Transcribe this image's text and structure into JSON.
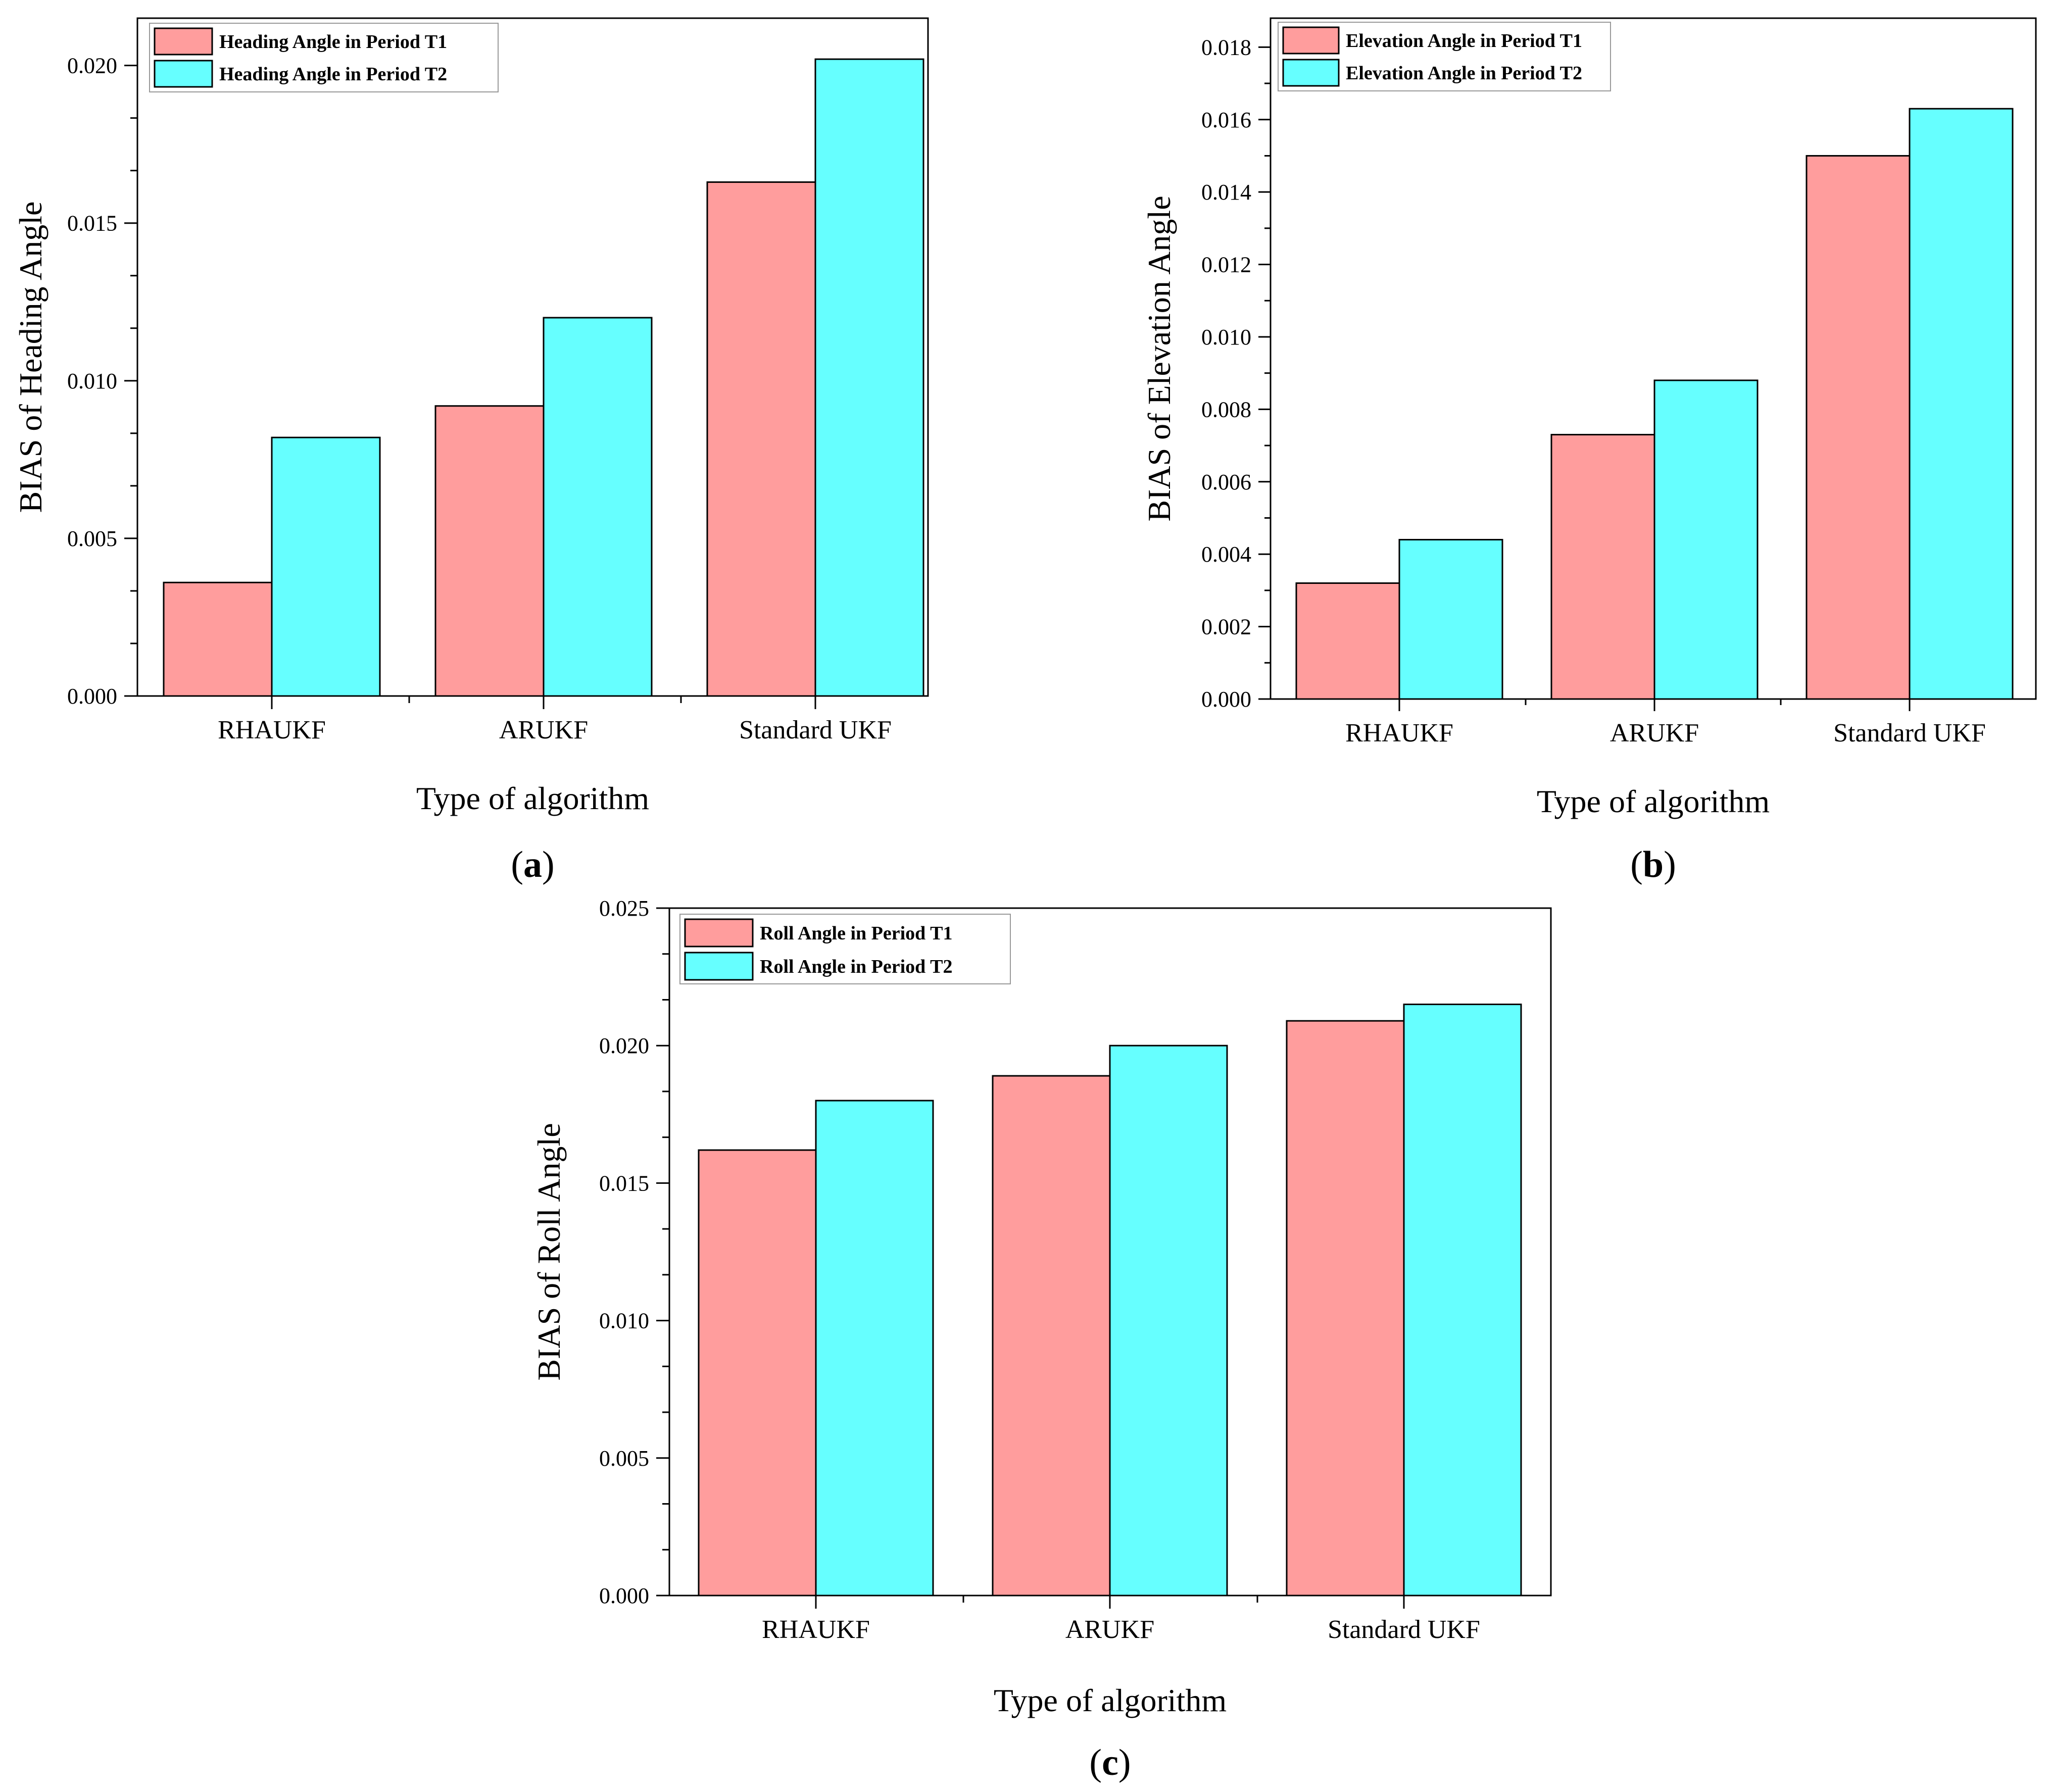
{
  "chart_data": [
    {
      "type": "bar",
      "panel": "a",
      "panel_label": [
        "(",
        "a",
        ")"
      ],
      "categories": [
        "RHAUKF",
        "ARUKF",
        "Standard UKF"
      ],
      "series": [
        {
          "name": "Heading Angle in Period T1",
          "color": "#FF9D9D",
          "values": [
            0.0036,
            0.0092,
            0.0163
          ]
        },
        {
          "name": "Heading Angle in Period T2",
          "color": "#66FFFF",
          "values": [
            0.0082,
            0.012,
            0.0202
          ]
        }
      ],
      "xlabel": "Type of algorithm",
      "ylabel": "BIAS of Heading Angle",
      "ylim": [
        0,
        0.0215
      ],
      "yticks": [
        "0.000",
        "0.005",
        "0.010",
        "0.015",
        "0.020"
      ],
      "legend": "top-left"
    },
    {
      "type": "bar",
      "panel": "b",
      "panel_label": [
        "(",
        "b",
        ")"
      ],
      "categories": [
        "RHAUKF",
        "ARUKF",
        "Standard UKF"
      ],
      "series": [
        {
          "name": "Elevation Angle in Period T1",
          "color": "#FF9D9D",
          "values": [
            0.0032,
            0.0073,
            0.015
          ]
        },
        {
          "name": "Elevation Angle in Period T2",
          "color": "#66FFFF",
          "values": [
            0.0044,
            0.0088,
            0.0163
          ]
        }
      ],
      "xlabel": "Type of algorithm",
      "ylabel": "BIAS of Elevation Angle",
      "ylim": [
        0,
        0.0188
      ],
      "yticks": [
        "0.000",
        "0.002",
        "0.004",
        "0.006",
        "0.008",
        "0.010",
        "0.012",
        "0.014",
        "0.016",
        "0.018"
      ],
      "legend": "top-left"
    },
    {
      "type": "bar",
      "panel": "c",
      "panel_label": [
        "(",
        "c",
        ")"
      ],
      "categories": [
        "RHAUKF",
        "ARUKF",
        "Standard UKF"
      ],
      "series": [
        {
          "name": "Roll Angle in Period T1",
          "color": "#FF9D9D",
          "values": [
            0.0162,
            0.0189,
            0.0209
          ]
        },
        {
          "name": "Roll Angle in Period T2",
          "color": "#66FFFF",
          "values": [
            0.018,
            0.02,
            0.0215
          ]
        }
      ],
      "xlabel": "Type of algorithm",
      "ylabel": "BIAS of Roll Angle",
      "ylim": [
        0,
        0.025
      ],
      "yticks": [
        "0.000",
        "0.005",
        "0.010",
        "0.015",
        "0.020",
        "0.025"
      ],
      "legend": "top-left"
    }
  ]
}
